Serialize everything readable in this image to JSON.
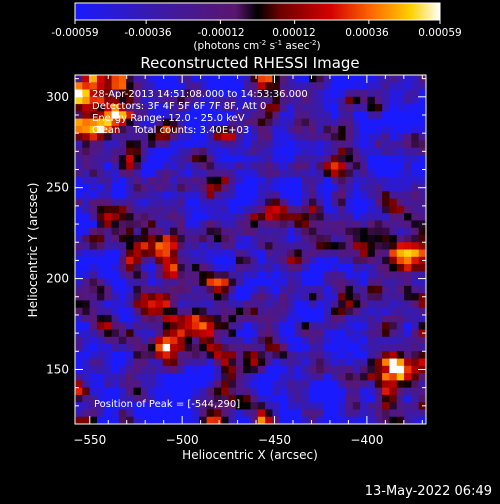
{
  "colorbar": {
    "ticks": [
      "-0.00059",
      "-0.00036",
      "-0.00012",
      "0.00012",
      "0.00036",
      "0.00059"
    ],
    "tick_values": [
      -0.00059,
      -0.00036,
      -0.00012,
      0.00012,
      0.00036,
      0.00059
    ],
    "units_prefix": "(photons cm",
    "units_exp1": "-2",
    "units_mid": " s",
    "units_exp2": "-1",
    "units_mid2": " asec",
    "units_exp3": "-2",
    "units_suffix": ")"
  },
  "chart_data": {
    "type": "heatmap",
    "title": "Reconstructed RHESSI Image",
    "xlabel": "Heliocentric X (arcsec)",
    "ylabel": "Heliocentric Y (arcsec)",
    "xlim": [
      -558,
      -368
    ],
    "ylim": [
      120,
      312
    ],
    "x_ticks": [
      -550,
      -500,
      -450,
      -400
    ],
    "x_tick_labels": [
      "−550",
      "−500",
      "−450",
      "−400"
    ],
    "y_ticks": [
      150,
      200,
      250,
      300
    ],
    "y_tick_labels": [
      "150",
      "200",
      "250",
      "300"
    ],
    "zlim": [
      -0.00059,
      0.00059
    ],
    "colormap": "blue-purple-red-yellow-white",
    "peak_position": [
      -544,
      290
    ],
    "image_summary": "noisy reconstructed map; brightest emission near top-left, warm clusters along lower-centre and right edge"
  },
  "annotations": {
    "lines": [
      "28-Apr-2013 14:51:08.000 to 14:53:36.000",
      "Detectors: 3F 4F 5F 6F 7F 8F, Att 0",
      "Energy Range: 12.0 - 25.0 keV",
      "Clean    Total counts: 3.40E+03"
    ],
    "peak": "Position of Peak = [-544,290]"
  },
  "timestamp": "13-May-2022 06:49",
  "colors": {
    "background": "#000000",
    "text": "#ffffff"
  }
}
